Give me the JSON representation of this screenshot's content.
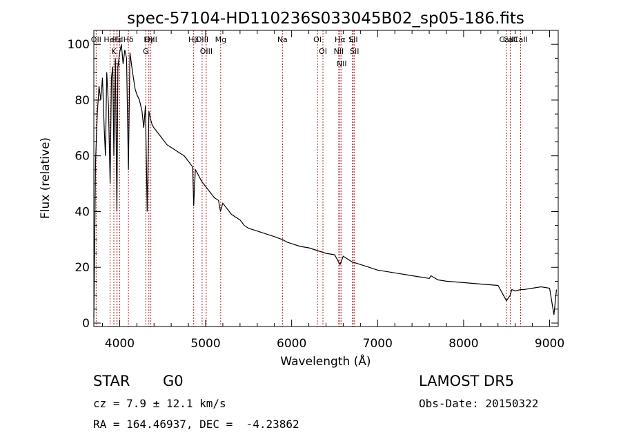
{
  "chart_data": {
    "type": "line",
    "title": "spec-57104-HD110236S033045B02_sp05-186.fits",
    "xlabel": "Wavelength (Å)",
    "ylabel": "Flux (relative)",
    "xlim": [
      3700,
      9100
    ],
    "ylim": [
      0,
      105
    ],
    "xticks": [
      4000,
      5000,
      6000,
      7000,
      8000,
      9000
    ],
    "yticks": [
      0,
      20,
      40,
      60,
      80,
      100
    ],
    "grid": false,
    "series": [
      {
        "x": [
          3700,
          3720,
          3740,
          3760,
          3780,
          3800,
          3820,
          3835,
          3850,
          3870,
          3889,
          3905,
          3920,
          3933,
          3950,
          3968,
          3980,
          4000,
          4020,
          4040,
          4060,
          4080,
          4102,
          4120,
          4150,
          4180,
          4200,
          4230,
          4260,
          4280,
          4300,
          4320,
          4340,
          4360,
          4380,
          4400,
          4450,
          4500,
          4550,
          4600,
          4650,
          4700,
          4750,
          4800,
          4850,
          4861,
          4880,
          4900,
          4950,
          5000,
          5050,
          5100,
          5150,
          5172,
          5200,
          5250,
          5300,
          5350,
          5400,
          5450,
          5500,
          5600,
          5700,
          5800,
          5890,
          5950,
          6000,
          6100,
          6200,
          6300,
          6400,
          6500,
          6563,
          6600,
          6700,
          6800,
          6900,
          7000,
          7200,
          7400,
          7600,
          7620,
          7700,
          7800,
          8000,
          8200,
          8400,
          8498,
          8542,
          8560,
          8600,
          8662,
          8700,
          8800,
          8900,
          9000,
          9050,
          9080
        ],
        "values": [
          2,
          58,
          75,
          85,
          80,
          88,
          70,
          60,
          90,
          78,
          50,
          88,
          92,
          60,
          95,
          40,
          92,
          97,
          100,
          93,
          98,
          95,
          55,
          97,
          90,
          84,
          82,
          80,
          76,
          70,
          78,
          40,
          76,
          73,
          71,
          70,
          68,
          66,
          64,
          63,
          62,
          61,
          60,
          58,
          56,
          42,
          55,
          54,
          51,
          49,
          47,
          45,
          44,
          40,
          43,
          41,
          39,
          38,
          37,
          35,
          34,
          33,
          32,
          31,
          30,
          29,
          28.5,
          27.5,
          27,
          26,
          25,
          24.5,
          21,
          24,
          22,
          21,
          20,
          19,
          18,
          17,
          16,
          17,
          15.5,
          15,
          14.5,
          14,
          13.5,
          8,
          10,
          12,
          11.5,
          12,
          12,
          12.5,
          13,
          12.5,
          3,
          12
        ]
      }
    ],
    "annotations": [
      {
        "label": "Hα",
        "x": 6563
      },
      {
        "label": "Hβ",
        "x": 4861
      },
      {
        "label": "Hγ",
        "x": 4340
      },
      {
        "label": "Hδ",
        "x": 4102
      },
      {
        "label": "Hε",
        "x": 3970
      },
      {
        "label": "K",
        "x": 3933
      },
      {
        "label": "H",
        "x": 3968
      },
      {
        "label": "G",
        "x": 4304
      },
      {
        "label": "Mg",
        "x": 5175
      },
      {
        "label": "Na",
        "x": 5893
      },
      {
        "label": "CaII",
        "x": 8498
      },
      {
        "label": "CaII",
        "x": 8542
      },
      {
        "label": "CaII",
        "x": 8662
      },
      {
        "label": "OII",
        "x": 3727
      },
      {
        "label": "OIII",
        "x": 4363
      },
      {
        "label": "OIII",
        "x": 4959
      },
      {
        "label": "OIII",
        "x": 5007
      },
      {
        "label": "OI",
        "x": 6300
      },
      {
        "label": "OI",
        "x": 6364
      },
      {
        "label": "NII",
        "x": 6548
      },
      {
        "label": "NII",
        "x": 6583
      },
      {
        "label": "SII",
        "x": 6716
      },
      {
        "label": "SII",
        "x": 6731
      },
      {
        "label": "Li",
        "x": 6708
      },
      {
        "label": "HeI",
        "x": 3889
      },
      {
        "label": "SI",
        "x": 4000
      }
    ]
  },
  "info": {
    "object_class": "STAR",
    "subclass": "G0",
    "survey": "LAMOST DR5",
    "cz": "cz = 7.9 ± 12.1 km/s",
    "obs_date": "Obs-Date: 20150322",
    "coords": "RA = 164.46937, DEC =  -4.23862"
  },
  "colors": {
    "spectrum": "#000000",
    "line_markers": "#b22222",
    "text": "#000000",
    "background": "#ffffff"
  }
}
